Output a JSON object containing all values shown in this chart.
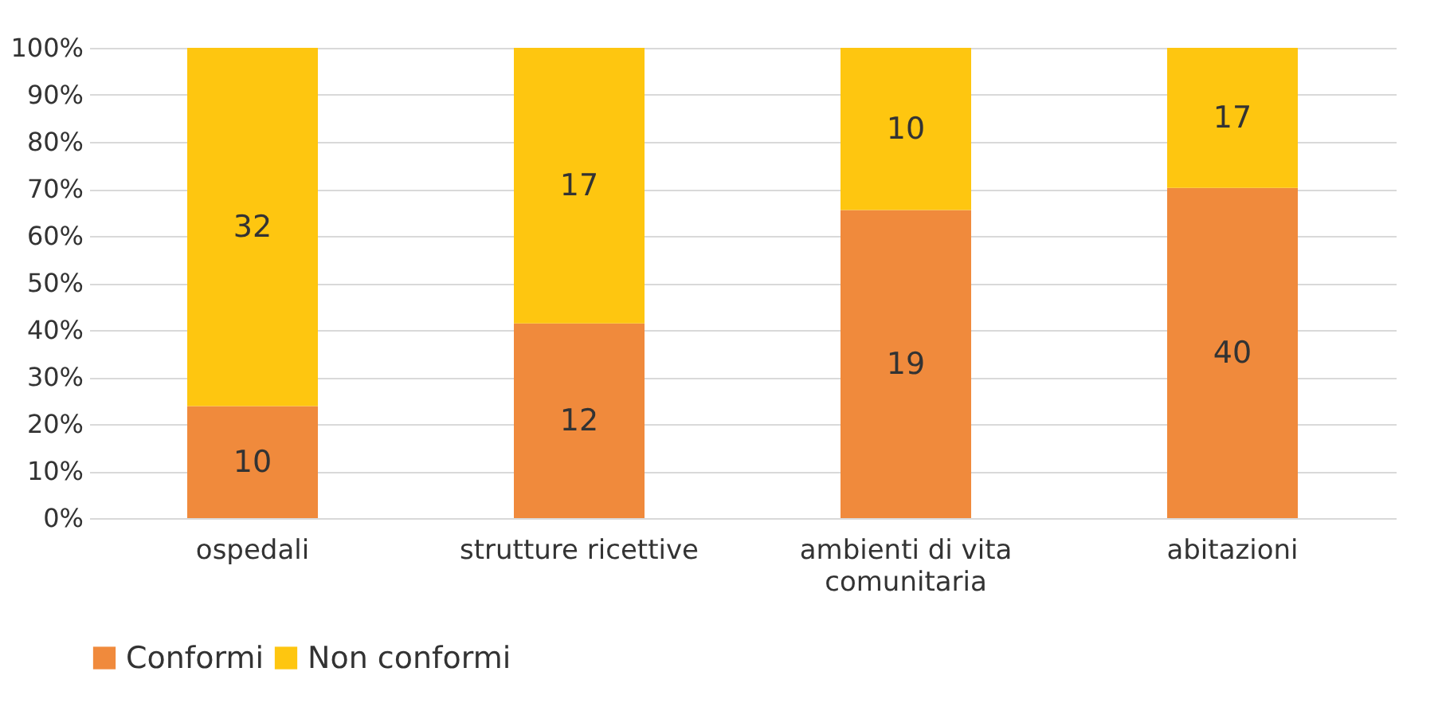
{
  "chart_data": {
    "type": "bar",
    "stacked": true,
    "categories": [
      "ospedali",
      "strutture ricettive",
      "ambienti di vita comunitaria",
      "abitazioni"
    ],
    "series": [
      {
        "name": "Conformi",
        "color": "#f08a3c",
        "values": [
          23.8,
          41.4,
          65.5,
          70.2
        ]
      },
      {
        "name": "Non conformi",
        "color": "#fec610",
        "values": [
          76.2,
          58.6,
          34.5,
          29.8
        ]
      }
    ],
    "annotations": [
      "10",
      "12",
      "19",
      "40",
      "32",
      "17",
      "10",
      "17"
    ],
    "ylim": [
      0,
      100
    ],
    "yticks": [
      {
        "value": 0,
        "label": "0%"
      },
      {
        "value": 10,
        "label": "10%"
      },
      {
        "value": 20,
        "label": "20%"
      },
      {
        "value": 30,
        "label": "30%"
      },
      {
        "value": 40,
        "label": "40%"
      },
      {
        "value": 50,
        "label": "50%"
      },
      {
        "value": 60,
        "label": "60%"
      },
      {
        "value": 70,
        "label": "70%"
      },
      {
        "value": 80,
        "label": "80%"
      },
      {
        "value": 90,
        "label": "90%"
      },
      {
        "value": 100,
        "label": "100%"
      }
    ],
    "grid": "y",
    "legend": "bottom"
  }
}
